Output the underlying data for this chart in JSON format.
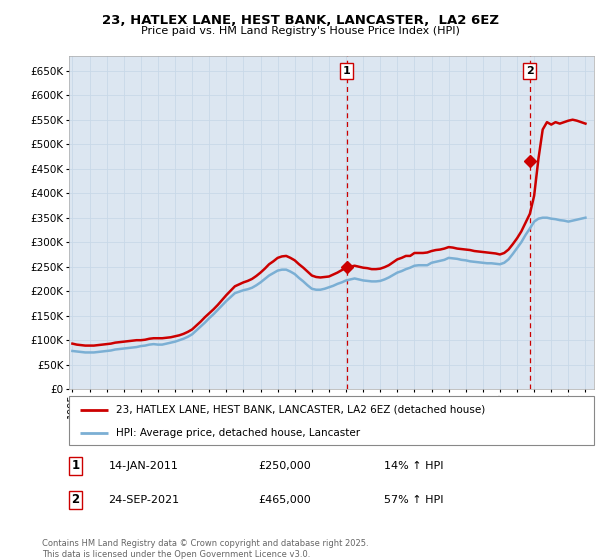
{
  "title": "23, HATLEX LANE, HEST BANK, LANCASTER,  LA2 6EZ",
  "subtitle": "Price paid vs. HM Land Registry's House Price Index (HPI)",
  "ylabel_ticks": [
    0,
    50000,
    100000,
    150000,
    200000,
    250000,
    300000,
    350000,
    400000,
    450000,
    500000,
    550000,
    600000,
    650000
  ],
  "ylim": [
    0,
    680000
  ],
  "xlim_start": 1994.8,
  "xlim_end": 2025.5,
  "sale1_x": 2011.04,
  "sale1_y": 250000,
  "sale2_x": 2021.73,
  "sale2_y": 465000,
  "sale1_date": "14-JAN-2011",
  "sale1_price": "£250,000",
  "sale1_pct": "14% ↑ HPI",
  "sale2_date": "24-SEP-2021",
  "sale2_price": "£465,000",
  "sale2_pct": "57% ↑ HPI",
  "red_line_color": "#cc0000",
  "blue_line_color": "#7bafd4",
  "grid_color": "#c8d8e8",
  "background_color": "#dce6f1",
  "legend_label_red": "23, HATLEX LANE, HEST BANK, LANCASTER, LA2 6EZ (detached house)",
  "legend_label_blue": "HPI: Average price, detached house, Lancaster",
  "footnote": "Contains HM Land Registry data © Crown copyright and database right 2025.\nThis data is licensed under the Open Government Licence v3.0.",
  "hpi_red_x": [
    1995.0,
    1995.25,
    1995.5,
    1995.75,
    1996.0,
    1996.25,
    1996.5,
    1996.75,
    1997.0,
    1997.25,
    1997.5,
    1997.75,
    1998.0,
    1998.25,
    1998.5,
    1998.75,
    1999.0,
    1999.25,
    1999.5,
    1999.75,
    2000.0,
    2000.25,
    2000.5,
    2000.75,
    2001.0,
    2001.25,
    2001.5,
    2001.75,
    2002.0,
    2002.25,
    2002.5,
    2002.75,
    2003.0,
    2003.25,
    2003.5,
    2003.75,
    2004.0,
    2004.25,
    2004.5,
    2004.75,
    2005.0,
    2005.25,
    2005.5,
    2005.75,
    2006.0,
    2006.25,
    2006.5,
    2006.75,
    2007.0,
    2007.25,
    2007.5,
    2007.75,
    2008.0,
    2008.25,
    2008.5,
    2008.75,
    2009.0,
    2009.25,
    2009.5,
    2009.75,
    2010.0,
    2010.25,
    2010.5,
    2010.75,
    2011.0,
    2011.25,
    2011.5,
    2011.75,
    2012.0,
    2012.25,
    2012.5,
    2012.75,
    2013.0,
    2013.25,
    2013.5,
    2013.75,
    2014.0,
    2014.25,
    2014.5,
    2014.75,
    2015.0,
    2015.25,
    2015.5,
    2015.75,
    2016.0,
    2016.25,
    2016.5,
    2016.75,
    2017.0,
    2017.25,
    2017.5,
    2017.75,
    2018.0,
    2018.25,
    2018.5,
    2018.75,
    2019.0,
    2019.25,
    2019.5,
    2019.75,
    2020.0,
    2020.25,
    2020.5,
    2020.75,
    2021.0,
    2021.25,
    2021.5,
    2021.75,
    2022.0,
    2022.25,
    2022.5,
    2022.75,
    2023.0,
    2023.25,
    2023.5,
    2023.75,
    2024.0,
    2024.25,
    2024.5,
    2024.75,
    2025.0
  ],
  "hpi_red_y": [
    93000,
    91000,
    90000,
    89000,
    89000,
    89000,
    90000,
    91000,
    92000,
    93000,
    95000,
    96000,
    97000,
    98000,
    99000,
    100000,
    100000,
    101000,
    103000,
    104000,
    104000,
    104000,
    105000,
    106000,
    108000,
    110000,
    113000,
    117000,
    122000,
    130000,
    138000,
    147000,
    155000,
    163000,
    172000,
    182000,
    192000,
    201000,
    210000,
    214000,
    218000,
    221000,
    225000,
    231000,
    238000,
    246000,
    255000,
    261000,
    268000,
    271000,
    272000,
    268000,
    263000,
    255000,
    248000,
    240000,
    232000,
    229000,
    228000,
    229000,
    230000,
    234000,
    238000,
    243000,
    248000,
    250000,
    252000,
    250000,
    248000,
    247000,
    245000,
    245000,
    246000,
    249000,
    253000,
    259000,
    265000,
    268000,
    272000,
    272000,
    278000,
    278000,
    278000,
    279000,
    282000,
    284000,
    285000,
    287000,
    290000,
    289000,
    287000,
    286000,
    285000,
    284000,
    282000,
    281000,
    280000,
    279000,
    278000,
    277000,
    275000,
    278000,
    285000,
    296000,
    308000,
    322000,
    340000,
    358000,
    395000,
    470000,
    530000,
    545000,
    540000,
    545000,
    542000,
    545000,
    548000,
    550000,
    548000,
    545000,
    542000
  ],
  "hpi_blue_x": [
    1995.0,
    1995.25,
    1995.5,
    1995.75,
    1996.0,
    1996.25,
    1996.5,
    1996.75,
    1997.0,
    1997.25,
    1997.5,
    1997.75,
    1998.0,
    1998.25,
    1998.5,
    1998.75,
    1999.0,
    1999.25,
    1999.5,
    1999.75,
    2000.0,
    2000.25,
    2000.5,
    2000.75,
    2001.0,
    2001.25,
    2001.5,
    2001.75,
    2002.0,
    2002.25,
    2002.5,
    2002.75,
    2003.0,
    2003.25,
    2003.5,
    2003.75,
    2004.0,
    2004.25,
    2004.5,
    2004.75,
    2005.0,
    2005.25,
    2005.5,
    2005.75,
    2006.0,
    2006.25,
    2006.5,
    2006.75,
    2007.0,
    2007.25,
    2007.5,
    2007.75,
    2008.0,
    2008.25,
    2008.5,
    2008.75,
    2009.0,
    2009.25,
    2009.5,
    2009.75,
    2010.0,
    2010.25,
    2010.5,
    2010.75,
    2011.0,
    2011.25,
    2011.5,
    2011.75,
    2012.0,
    2012.25,
    2012.5,
    2012.75,
    2013.0,
    2013.25,
    2013.5,
    2013.75,
    2014.0,
    2014.25,
    2014.5,
    2014.75,
    2015.0,
    2015.25,
    2015.5,
    2015.75,
    2016.0,
    2016.25,
    2016.5,
    2016.75,
    2017.0,
    2017.25,
    2017.5,
    2017.75,
    2018.0,
    2018.25,
    2018.5,
    2018.75,
    2019.0,
    2019.25,
    2019.5,
    2019.75,
    2020.0,
    2020.25,
    2020.5,
    2020.75,
    2021.0,
    2021.25,
    2021.5,
    2021.75,
    2022.0,
    2022.25,
    2022.5,
    2022.75,
    2023.0,
    2023.25,
    2023.5,
    2023.75,
    2024.0,
    2024.25,
    2024.5,
    2024.75,
    2025.0
  ],
  "hpi_blue_y": [
    78000,
    77000,
    76000,
    75000,
    75000,
    75000,
    76000,
    77000,
    78000,
    79000,
    81000,
    82000,
    83000,
    84000,
    85000,
    86000,
    88000,
    89000,
    91000,
    92000,
    91000,
    91000,
    93000,
    95000,
    97000,
    100000,
    103000,
    107000,
    112000,
    120000,
    128000,
    136000,
    145000,
    153000,
    162000,
    171000,
    180000,
    188000,
    196000,
    199000,
    202000,
    204000,
    207000,
    212000,
    218000,
    225000,
    232000,
    237000,
    242000,
    244000,
    244000,
    240000,
    235000,
    227000,
    220000,
    212000,
    205000,
    203000,
    203000,
    205000,
    208000,
    211000,
    215000,
    218000,
    222000,
    224000,
    226000,
    224000,
    222000,
    221000,
    220000,
    220000,
    221000,
    224000,
    228000,
    233000,
    238000,
    241000,
    245000,
    248000,
    252000,
    253000,
    253000,
    253000,
    258000,
    260000,
    262000,
    264000,
    268000,
    267000,
    266000,
    264000,
    263000,
    261000,
    260000,
    259000,
    258000,
    257000,
    257000,
    256000,
    255000,
    258000,
    265000,
    276000,
    288000,
    300000,
    315000,
    328000,
    342000,
    348000,
    350000,
    350000,
    348000,
    347000,
    345000,
    344000,
    342000,
    344000,
    346000,
    348000,
    350000
  ]
}
